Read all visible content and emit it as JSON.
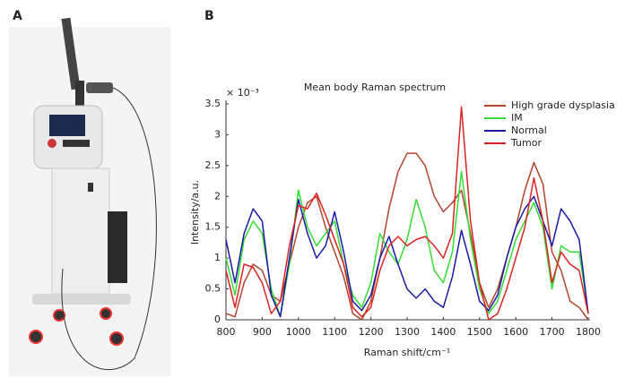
{
  "panel_labels": [
    "A",
    "B"
  ],
  "chart_data": {
    "type": "line",
    "title": "Mean body Raman spectrum",
    "y_multiplier": "× 10⁻³",
    "xlabel": "Raman shift/cm⁻¹",
    "ylabel": "Intensity/a.u.",
    "x": [
      800,
      825,
      850,
      875,
      900,
      925,
      950,
      975,
      1000,
      1025,
      1050,
      1075,
      1100,
      1125,
      1150,
      1175,
      1200,
      1225,
      1250,
      1275,
      1300,
      1325,
      1350,
      1375,
      1400,
      1425,
      1450,
      1475,
      1500,
      1525,
      1550,
      1575,
      1600,
      1625,
      1650,
      1675,
      1700,
      1725,
      1750,
      1775,
      1800
    ],
    "series": [
      {
        "name": "High grade dysplasia",
        "color": "#b4442c",
        "values": [
          0.1,
          0.05,
          0.6,
          0.9,
          0.8,
          0.4,
          0.3,
          0.9,
          1.5,
          1.9,
          2.0,
          1.5,
          1.1,
          0.7,
          0.1,
          0.0,
          0.3,
          1.0,
          1.8,
          2.4,
          2.7,
          2.7,
          2.5,
          2.0,
          1.75,
          1.9,
          2.1,
          1.4,
          0.6,
          0.2,
          0.5,
          1.0,
          1.5,
          2.1,
          2.55,
          2.2,
          1.1,
          0.8,
          0.3,
          0.2,
          0.0
        ]
      },
      {
        "name": "IM",
        "color": "#33dd33",
        "values": [
          1.0,
          0.4,
          1.3,
          1.6,
          1.4,
          0.5,
          0.05,
          0.9,
          2.1,
          1.5,
          1.2,
          1.4,
          1.6,
          0.9,
          0.4,
          0.2,
          0.6,
          1.4,
          1.1,
          0.9,
          1.3,
          1.95,
          1.5,
          0.8,
          0.6,
          1.1,
          2.4,
          1.3,
          0.5,
          0.1,
          0.3,
          0.8,
          1.3,
          1.6,
          1.9,
          1.5,
          0.5,
          1.2,
          1.1,
          1.1,
          0.1
        ]
      },
      {
        "name": "Normal",
        "color": "#1a1aa8",
        "values": [
          1.3,
          0.6,
          1.4,
          1.8,
          1.6,
          0.4,
          0.05,
          1.0,
          1.95,
          1.4,
          1.0,
          1.2,
          1.75,
          1.1,
          0.3,
          0.15,
          0.4,
          1.0,
          1.35,
          0.9,
          0.5,
          0.35,
          0.5,
          0.3,
          0.2,
          0.7,
          1.45,
          0.9,
          0.3,
          0.15,
          0.4,
          1.0,
          1.5,
          1.8,
          2.0,
          1.6,
          1.2,
          1.8,
          1.6,
          1.3,
          0.1
        ]
      },
      {
        "name": "Tumor",
        "color": "#dd2222",
        "values": [
          0.8,
          0.2,
          0.9,
          0.85,
          0.6,
          0.1,
          0.3,
          1.2,
          1.85,
          1.8,
          2.05,
          1.7,
          1.3,
          0.9,
          0.2,
          0.05,
          0.2,
          0.8,
          1.2,
          1.35,
          1.2,
          1.3,
          1.35,
          1.2,
          1.0,
          1.4,
          3.45,
          1.6,
          0.6,
          0.0,
          0.1,
          0.5,
          1.0,
          1.5,
          2.3,
          1.6,
          0.6,
          1.1,
          0.9,
          0.8,
          0.1
        ]
      }
    ],
    "xlim": [
      800,
      1800
    ],
    "xticks": [
      800,
      900,
      1000,
      1100,
      1200,
      1300,
      1400,
      1500,
      1600,
      1700,
      1800
    ],
    "ylim": [
      0,
      3.5
    ],
    "yticks": [
      0,
      0.5,
      1,
      1.5,
      2,
      2.5,
      3,
      3.5
    ],
    "legend": "upper right"
  }
}
